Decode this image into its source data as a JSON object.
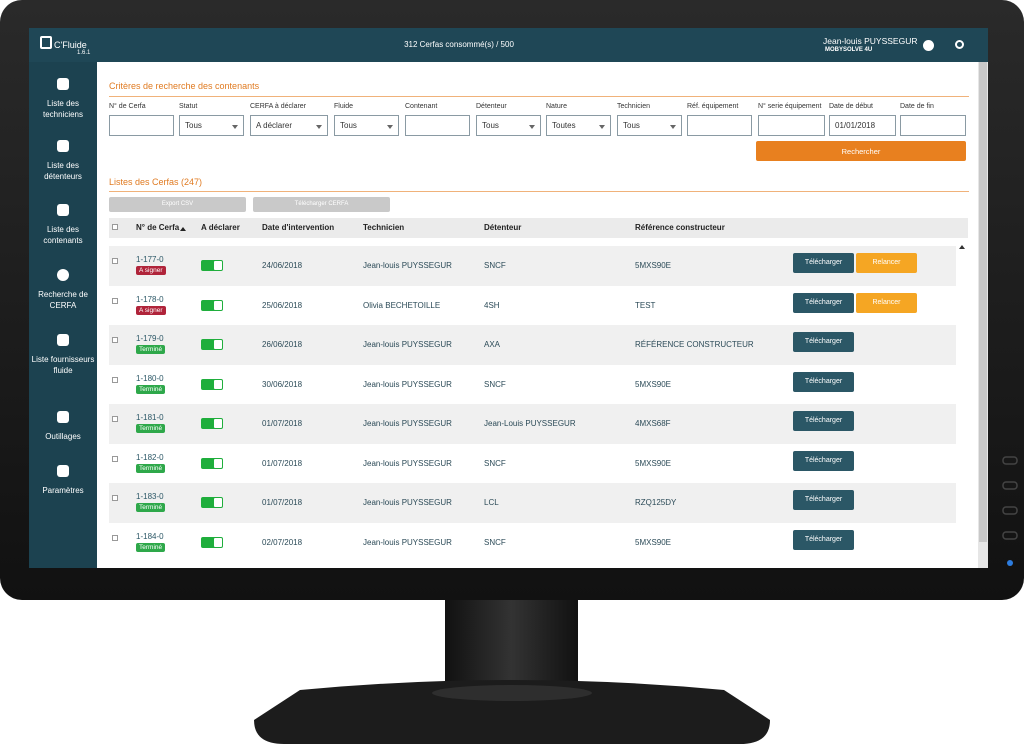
{
  "app": {
    "name": "C'Fluide",
    "version": "1.6.1"
  },
  "header": {
    "quota": "312 Cerfas consommé(s) / 500",
    "user": "Jean-louis PUYSSEGUR",
    "company": "MOBYSOLVE 4U"
  },
  "sidebar": [
    "Liste des techniciens",
    "Liste des détenteurs",
    "Liste des contenants",
    "Recherche de CERFA",
    "Liste fournisseurs fluide",
    "Outillages",
    "Paramètres"
  ],
  "search": {
    "title": "Critères de recherche des contenants",
    "fields": [
      {
        "label": "N° de Cerfa"
      },
      {
        "label": "Statut",
        "value": "Tous"
      },
      {
        "label": "CERFA à déclarer",
        "value": "A déclarer"
      },
      {
        "label": "Fluide",
        "value": "Tous"
      },
      {
        "label": "Contenant"
      },
      {
        "label": "Détenteur",
        "value": "Tous"
      },
      {
        "label": "Nature",
        "value": "Toutes"
      },
      {
        "label": "Technicien",
        "value": "Tous"
      },
      {
        "label": "Réf. équipement"
      },
      {
        "label": "N° serie équipement"
      },
      {
        "label": "Date de début",
        "value": "01/01/2018"
      },
      {
        "label": "Date de fin"
      }
    ],
    "button": "Rechercher"
  },
  "list": {
    "title": "Listes des Cerfas (247)",
    "buttons": [
      "Export CSV",
      "Télécharger CERFA"
    ],
    "columns": [
      "N° de Cerfa",
      "A déclarer",
      "Date d'intervention",
      "Technicien",
      "Détenteur",
      "Référence constructeur"
    ],
    "rows": [
      {
        "id": "1-177-0",
        "status": "A signer",
        "status_color": "#b0243a",
        "date": "24/06/2018",
        "technician": "Jean-louis PUYSSEGUR",
        "holder": "SNCF",
        "reference": "5MXS90E",
        "actions": [
          {
            "label": "Télécharger",
            "color": "#2b5766"
          },
          {
            "label": "Relancer",
            "color": "#f5a623"
          }
        ]
      },
      {
        "id": "1-178-0",
        "status": "A signer",
        "status_color": "#b0243a",
        "date": "25/06/2018",
        "technician": "Olivia BECHETOILLE",
        "holder": "4SH",
        "reference": "TEST",
        "actions": [
          {
            "label": "Télécharger",
            "color": "#2b5766"
          },
          {
            "label": "Relancer",
            "color": "#f5a623"
          }
        ]
      },
      {
        "id": "1-179-0",
        "status": "Terminé",
        "status_color": "#2ea84a",
        "date": "26/06/2018",
        "technician": "Jean-louis PUYSSEGUR",
        "holder": "AXA",
        "reference": "RÉFÉRENCE CONSTRUCTEUR",
        "actions": [
          {
            "label": "Télécharger",
            "color": "#2b5766"
          }
        ]
      },
      {
        "id": "1-180-0",
        "status": "Terminé",
        "status_color": "#2ea84a",
        "date": "30/06/2018",
        "technician": "Jean-louis PUYSSEGUR",
        "holder": "SNCF",
        "reference": "5MXS90E",
        "actions": [
          {
            "label": "Télécharger",
            "color": "#2b5766"
          }
        ]
      },
      {
        "id": "1-181-0",
        "status": "Terminé",
        "status_color": "#2ea84a",
        "date": "01/07/2018",
        "technician": "Jean-louis PUYSSEGUR",
        "holder": "Jean-Louis PUYSSEGUR",
        "reference": "4MXS68F",
        "actions": [
          {
            "label": "Télécharger",
            "color": "#2b5766"
          }
        ]
      },
      {
        "id": "1-182-0",
        "status": "Terminé",
        "status_color": "#2ea84a",
        "date": "01/07/2018",
        "technician": "Jean-louis PUYSSEGUR",
        "holder": "SNCF",
        "reference": "5MXS90E",
        "actions": [
          {
            "label": "Télécharger",
            "color": "#2b5766"
          }
        ]
      },
      {
        "id": "1-183-0",
        "status": "Terminé",
        "status_color": "#2ea84a",
        "date": "01/07/2018",
        "technician": "Jean-louis PUYSSEGUR",
        "holder": "LCL",
        "reference": "RZQ125DY",
        "actions": [
          {
            "label": "Télécharger",
            "color": "#2b5766"
          }
        ]
      },
      {
        "id": "1-184-0",
        "status": "Terminé",
        "status_color": "#2ea84a",
        "date": "02/07/2018",
        "technician": "Jean-louis PUYSSEGUR",
        "holder": "SNCF",
        "reference": "5MXS90E",
        "actions": [
          {
            "label": "Télécharger",
            "color": "#2b5766"
          }
        ]
      }
    ]
  }
}
